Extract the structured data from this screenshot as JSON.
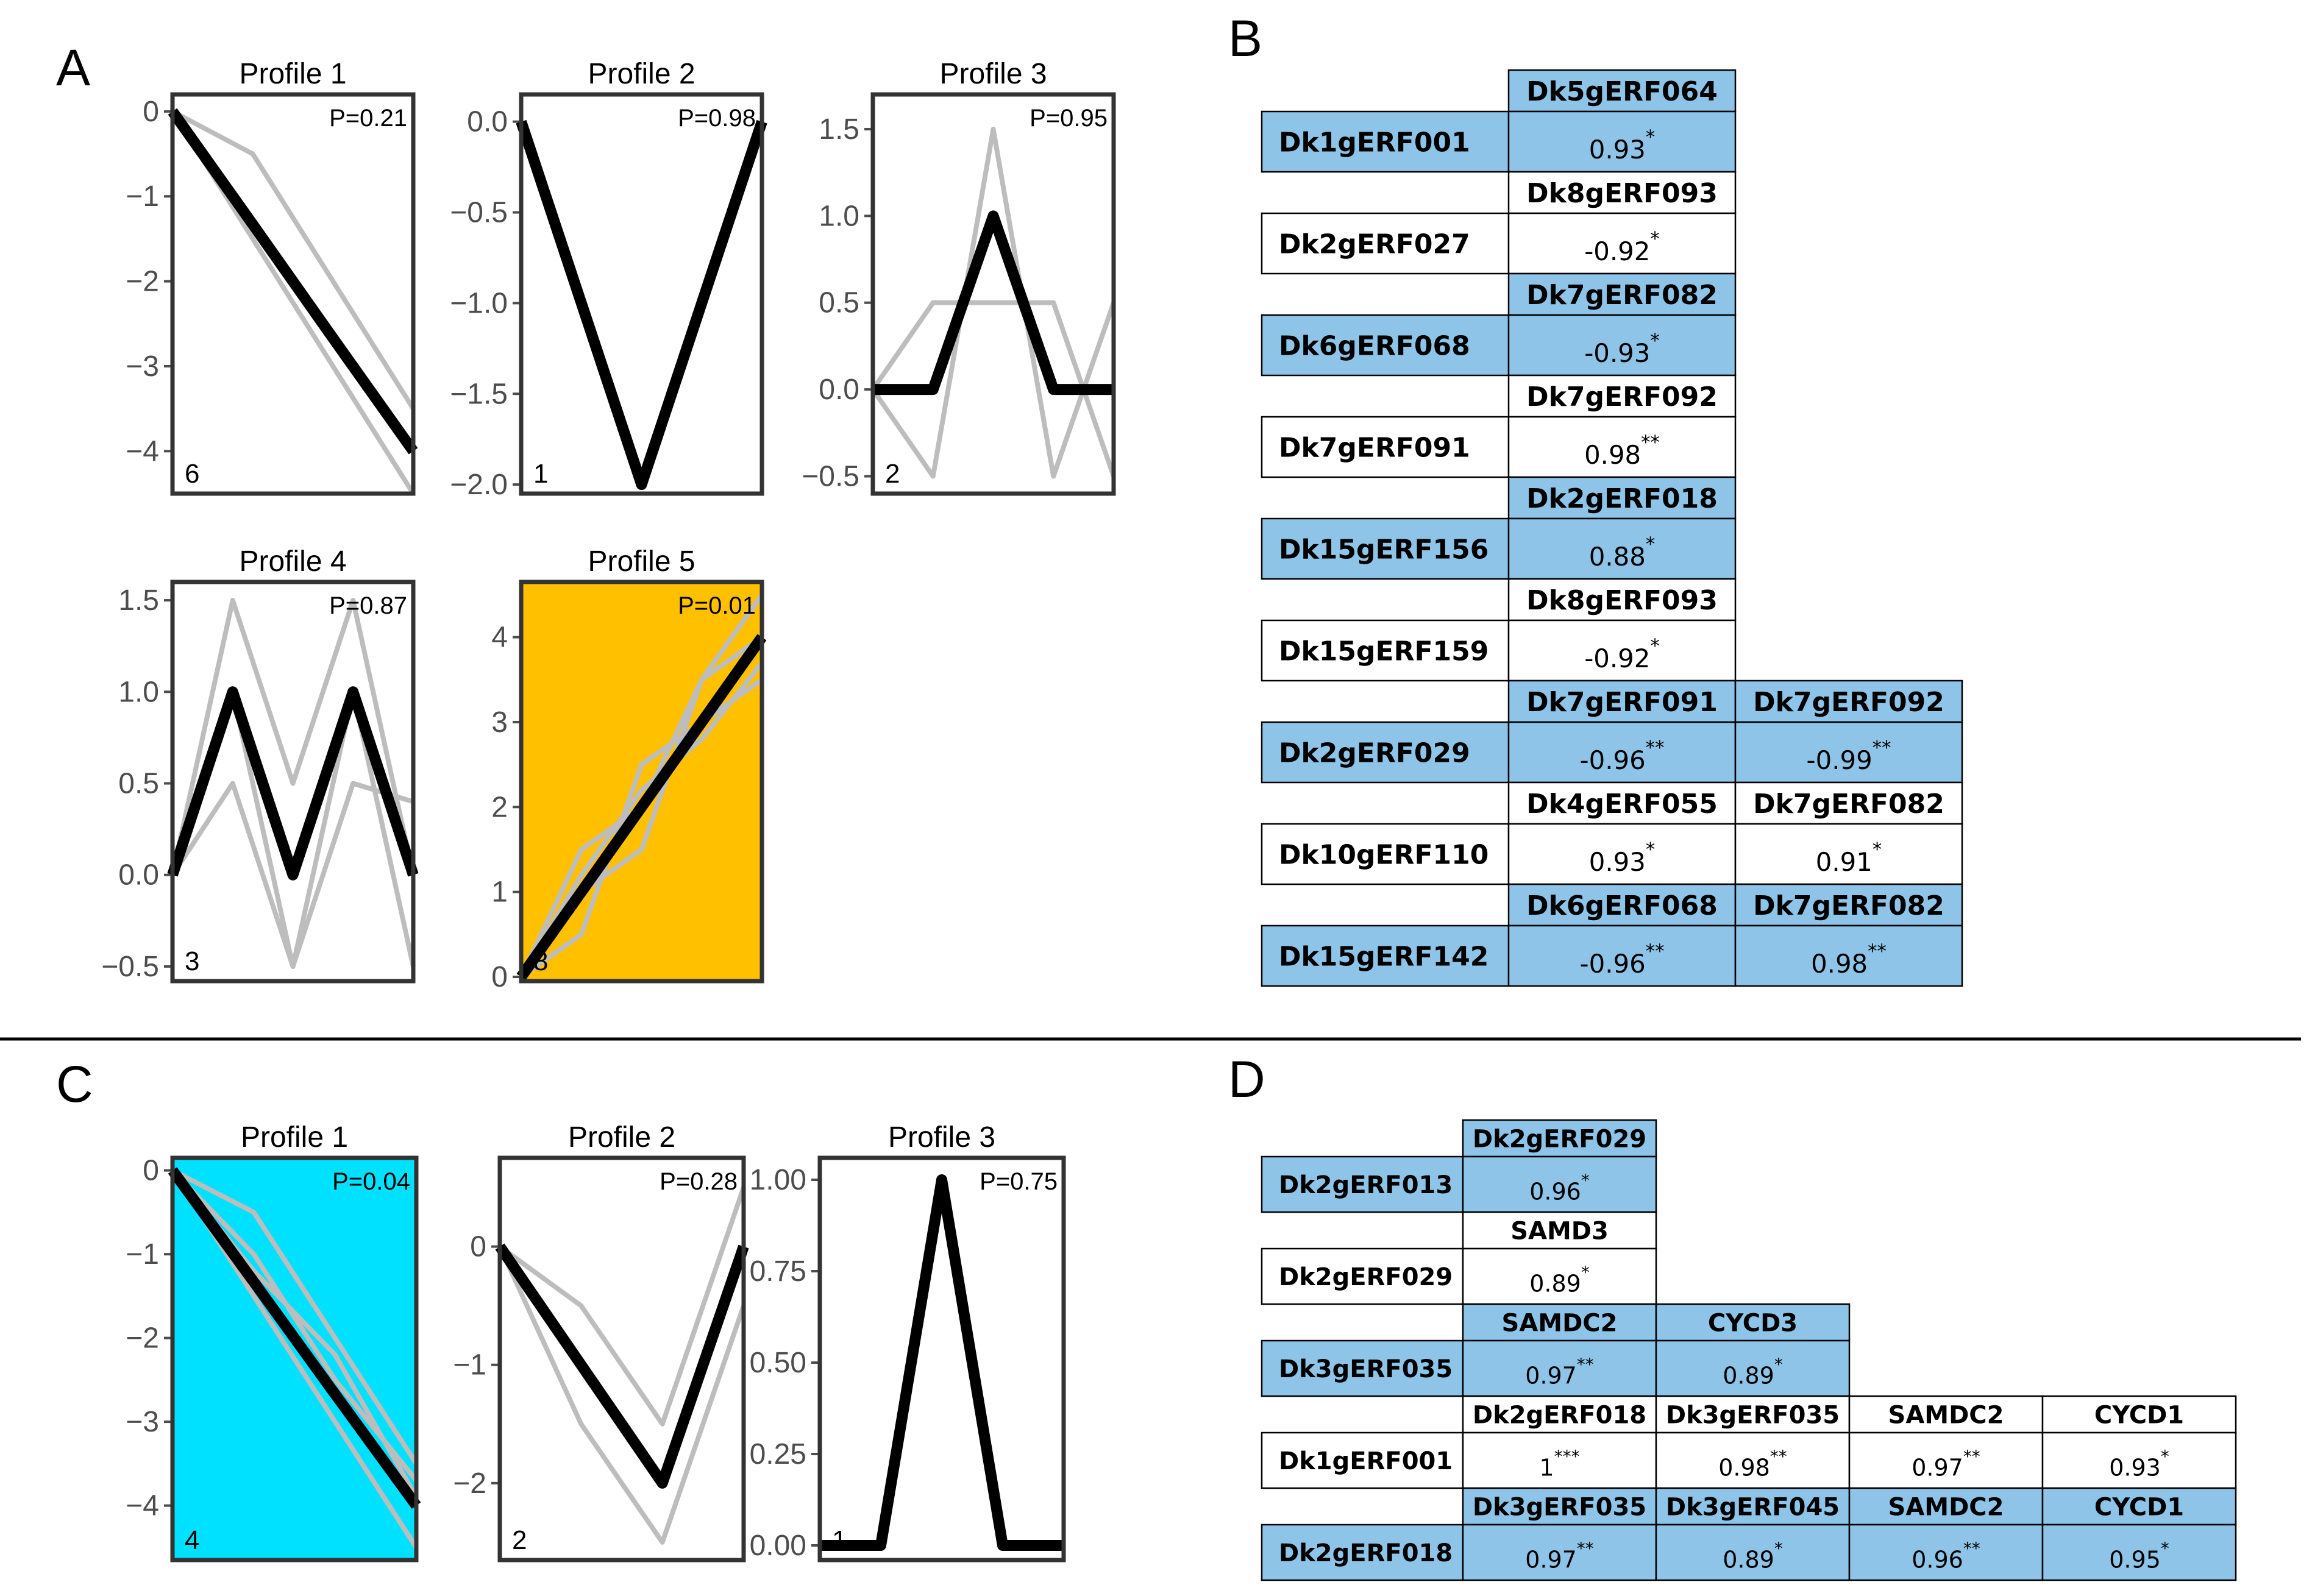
{
  "figure": {
    "panel_labels": [
      "A",
      "B",
      "C",
      "D"
    ],
    "colors": {
      "highlight_yellow": "#FFC000",
      "highlight_cyan": "#00E1FF",
      "table_blue": "#8DC4E8",
      "mean_line": "#000000",
      "member_line": "#BDBDBD"
    }
  },
  "chart_data": [
    {
      "type": "line",
      "panel": "A",
      "title": "Profile 1",
      "p_value": "P=0.21",
      "count": "6",
      "x": [
        0,
        1,
        2,
        3
      ],
      "ylim": [
        -4.5,
        0.2
      ],
      "yticks": [
        0,
        -1,
        -2,
        -3,
        -4
      ],
      "ytick_labels": [
        "0",
        "−1",
        "−2",
        "−3",
        "−4"
      ],
      "highlight": null,
      "mean": [
        0,
        -1.33,
        -2.67,
        -4.0
      ],
      "members": [
        [
          0,
          -0.5,
          -2.0,
          -3.5
        ],
        [
          0,
          -1.5,
          -3.0,
          -4.5
        ]
      ]
    },
    {
      "type": "line",
      "panel": "A",
      "title": "Profile 2",
      "p_value": "P=0.98",
      "count": "1",
      "x": [
        0,
        1,
        2
      ],
      "ylim": [
        -2.05,
        0.15
      ],
      "yticks": [
        0,
        -0.5,
        -1,
        -1.5,
        -2
      ],
      "ytick_labels": [
        "0.0",
        "−0.5",
        "−1.0",
        "−1.5",
        "−2.0"
      ],
      "highlight": null,
      "mean": [
        0,
        -2.0,
        0
      ],
      "members": []
    },
    {
      "type": "line",
      "panel": "A",
      "title": "Profile 3",
      "p_value": "P=0.95",
      "count": "2",
      "x": [
        0,
        1,
        2,
        3,
        4
      ],
      "ylim": [
        -0.6,
        1.7
      ],
      "yticks": [
        1.5,
        1.0,
        0.5,
        0.0,
        -0.5
      ],
      "ytick_labels": [
        "1.5",
        "1.0",
        "0.5",
        "0.0",
        "−0.5"
      ],
      "highlight": null,
      "mean": [
        0,
        0,
        1.0,
        0,
        0
      ],
      "members": [
        [
          0,
          -0.5,
          1.5,
          -0.5,
          0.5
        ],
        [
          0,
          0.5,
          0.5,
          0.5,
          -0.5
        ]
      ]
    },
    {
      "type": "line",
      "panel": "A",
      "title": "Profile 4",
      "p_value": "P=0.87",
      "count": "3",
      "x": [
        0,
        1,
        2,
        3,
        4
      ],
      "ylim": [
        -0.58,
        1.6
      ],
      "yticks": [
        1.5,
        1.0,
        0.5,
        0.0,
        -0.5
      ],
      "ytick_labels": [
        "1.5",
        "1.0",
        "0.5",
        "0.0",
        "−0.5"
      ],
      "highlight": null,
      "mean": [
        0,
        1.0,
        0,
        1.0,
        0
      ],
      "members": [
        [
          0,
          1.5,
          0.5,
          1.5,
          0
        ],
        [
          0,
          0.5,
          -0.5,
          0.5,
          0.4
        ],
        [
          0,
          1.0,
          -0.5,
          1.0,
          -0.5
        ]
      ]
    },
    {
      "type": "line",
      "panel": "A",
      "title": "Profile 5",
      "p_value": "P=0.01",
      "count": "8",
      "x": [
        0,
        1,
        2,
        3,
        4
      ],
      "ylim": [
        -0.05,
        4.65
      ],
      "yticks": [
        4,
        3,
        2,
        1,
        0
      ],
      "ytick_labels": [
        "4",
        "3",
        "2",
        "1",
        "0"
      ],
      "highlight": "yellow",
      "mean": [
        0,
        1.0,
        2.0,
        3.0,
        4.0
      ],
      "members": [
        [
          0,
          1.5,
          2.0,
          3.5,
          4.5
        ],
        [
          0,
          0.5,
          2.5,
          3.0,
          3.5
        ],
        [
          0,
          1.0,
          1.5,
          3.5,
          4.0
        ],
        [
          0,
          1.2,
          2.2,
          2.8,
          3.7
        ]
      ]
    },
    {
      "type": "line",
      "panel": "C",
      "title": "Profile 1",
      "p_value": "P=0.04",
      "count": "4",
      "x": [
        0,
        1,
        2,
        3
      ],
      "ylim": [
        -4.65,
        0.15
      ],
      "yticks": [
        0,
        -1,
        -2,
        -3,
        -4
      ],
      "ytick_labels": [
        "0",
        "−1",
        "−2",
        "−3",
        "−4"
      ],
      "highlight": "cyan",
      "mean": [
        0,
        -1.33,
        -2.67,
        -4.0
      ],
      "members": [
        [
          0,
          -0.5,
          -2.0,
          -3.5
        ],
        [
          0,
          -1.5,
          -3.0,
          -4.5
        ],
        [
          0,
          -1.0,
          -2.5,
          -3.7
        ],
        [
          0,
          -1.2,
          -2.2,
          -3.9
        ]
      ]
    },
    {
      "type": "line",
      "panel": "C",
      "title": "Profile 2",
      "p_value": "P=0.28",
      "count": "2",
      "x": [
        0,
        1,
        2,
        3
      ],
      "ylim": [
        -2.65,
        0.75
      ],
      "yticks": [
        0,
        -1,
        -2
      ],
      "ytick_labels": [
        "0",
        "−1",
        "−2"
      ],
      "highlight": null,
      "mean": [
        0,
        -1.0,
        -2.0,
        0
      ],
      "members": [
        [
          0,
          -0.5,
          -1.5,
          0.5
        ],
        [
          0,
          -1.5,
          -2.5,
          -0.5
        ]
      ]
    },
    {
      "type": "line",
      "panel": "C",
      "title": "Profile 3",
      "p_value": "P=0.75",
      "count": "1",
      "x": [
        0,
        1,
        2,
        3,
        4
      ],
      "ylim": [
        -0.04,
        1.06
      ],
      "yticks": [
        1.0,
        0.75,
        0.5,
        0.25,
        0.0
      ],
      "ytick_labels": [
        "1.00",
        "0.75",
        "0.50",
        "0.25",
        "0.00"
      ],
      "highlight": null,
      "mean": [
        0,
        0,
        1.0,
        0,
        0
      ],
      "members": []
    }
  ],
  "tables": {
    "B": [
      {
        "row": "Dk1gERF001",
        "cols": [
          "Dk5gERF064"
        ],
        "vals": [
          "0.93"
        ],
        "sig": [
          "*"
        ],
        "shade": true
      },
      {
        "row": "Dk2gERF027",
        "cols": [
          "Dk8gERF093"
        ],
        "vals": [
          "-0.92"
        ],
        "sig": [
          "*"
        ],
        "shade": false
      },
      {
        "row": "Dk6gERF068",
        "cols": [
          "Dk7gERF082"
        ],
        "vals": [
          "-0.93"
        ],
        "sig": [
          "*"
        ],
        "shade": true
      },
      {
        "row": "Dk7gERF091",
        "cols": [
          "Dk7gERF092"
        ],
        "vals": [
          "0.98"
        ],
        "sig": [
          "**"
        ],
        "shade": false
      },
      {
        "row": "Dk15gERF156",
        "cols": [
          "Dk2gERF018"
        ],
        "vals": [
          "0.88"
        ],
        "sig": [
          "*"
        ],
        "shade": true
      },
      {
        "row": "Dk15gERF159",
        "cols": [
          "Dk8gERF093"
        ],
        "vals": [
          "-0.92"
        ],
        "sig": [
          "*"
        ],
        "shade": false
      },
      {
        "row": "Dk2gERF029",
        "cols": [
          "Dk7gERF091",
          "Dk7gERF092"
        ],
        "vals": [
          "-0.96",
          "-0.99"
        ],
        "sig": [
          "**",
          "**"
        ],
        "shade": true
      },
      {
        "row": "Dk10gERF110",
        "cols": [
          "Dk4gERF055",
          "Dk7gERF082"
        ],
        "vals": [
          "0.93",
          "0.91"
        ],
        "sig": [
          "*",
          "*"
        ],
        "shade": false
      },
      {
        "row": "Dk15gERF142",
        "cols": [
          "Dk6gERF068",
          "Dk7gERF082"
        ],
        "vals": [
          "-0.96",
          "0.98"
        ],
        "sig": [
          "**",
          "**"
        ],
        "shade": true
      }
    ],
    "D": [
      {
        "row": "Dk2gERF013",
        "cols": [
          "Dk2gERF029"
        ],
        "vals": [
          "0.96"
        ],
        "sig": [
          "*"
        ],
        "shade": true
      },
      {
        "row": "Dk2gERF029",
        "cols": [
          "SAMD3"
        ],
        "vals": [
          "0.89"
        ],
        "sig": [
          "*"
        ],
        "shade": false
      },
      {
        "row": "Dk3gERF035",
        "cols": [
          "SAMDC2",
          "CYCD3"
        ],
        "vals": [
          "0.97",
          "0.89"
        ],
        "sig": [
          "**",
          "*"
        ],
        "shade": true
      },
      {
        "row": "Dk1gERF001",
        "cols": [
          "Dk2gERF018",
          "Dk3gERF035",
          "SAMDC2",
          "CYCD1"
        ],
        "vals": [
          "1",
          "0.98",
          "0.97",
          "0.93"
        ],
        "sig": [
          "***",
          "**",
          "**",
          "*"
        ],
        "shade": false
      },
      {
        "row": "Dk2gERF018",
        "cols": [
          "Dk3gERF035",
          "Dk3gERF045",
          "SAMDC2",
          "CYCD1"
        ],
        "vals": [
          "0.97",
          "0.89",
          "0.96",
          "0.95"
        ],
        "sig": [
          "**",
          "*",
          "**",
          "*"
        ],
        "shade": true
      }
    ]
  }
}
